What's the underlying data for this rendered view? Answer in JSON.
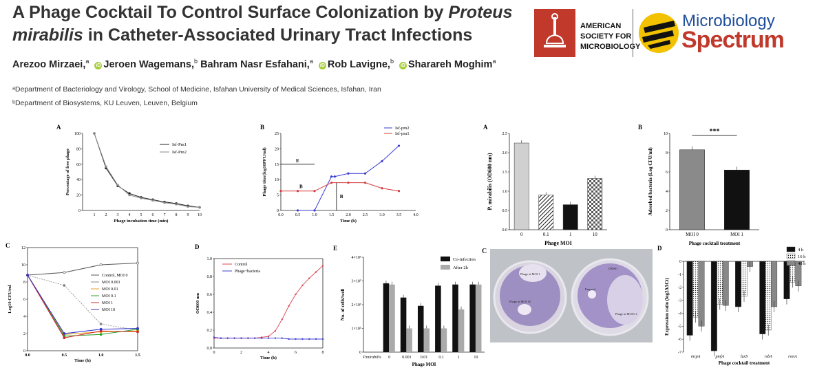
{
  "header": {
    "title": "A Phage Cocktail To Control Surface Colonization by Proteus mirabilis in Catheter-Associated Urinary Tract Infections",
    "title_parts": [
      "A Phage Cocktail To Control Surface Colonization by ",
      "Proteus",
      "mirabilis",
      " in Catheter-Associated Urinary Tract Infections"
    ],
    "authors": [
      {
        "name": "Arezoo Mirzaei,",
        "sup": "a",
        "orcid": false
      },
      {
        "name": "Jeroen Wagemans,",
        "sup": "b",
        "orcid": true
      },
      {
        "name": "Bahram Nasr Esfahani,",
        "sup": "a",
        "orcid": false
      },
      {
        "name": "Rob Lavigne,",
        "sup": "b",
        "orcid": true
      },
      {
        "name": "Sharareh Moghim",
        "sup": "a",
        "orcid": true
      }
    ],
    "affiliations": [
      "ᵃDepartment of Bacteriology and Virology, School of Medicine, Isfahan University of Medical Sciences, Isfahan, Iran",
      "ᵇDepartment of Biosystems, KU Leuven, Leuven, Belgium"
    ],
    "logos": {
      "asm_lines": [
        "AMERICAN",
        "SOCIETY FOR",
        "MICROBIOLOGY"
      ],
      "journal_line1": "Microbiology",
      "journal_line2": "Spectrum",
      "colors": {
        "asm_red": "#c0392b",
        "spectrum_blue": "#1e4e9a",
        "spectrum_red": "#c0392b",
        "spectrum_yellow": "#f2c200"
      }
    }
  },
  "chart_data": [
    {
      "id": "top-A",
      "panel": "A",
      "type": "line",
      "xlabel": "Phage incubation time (min)",
      "ylabel": "Percentage of free phage",
      "xlim": [
        0,
        10
      ],
      "ylim": [
        0,
        100
      ],
      "xticks": [
        1,
        2,
        3,
        4,
        5,
        6,
        7,
        8,
        9,
        10
      ],
      "yticks": [
        0,
        20,
        40,
        60,
        80,
        100
      ],
      "series": [
        {
          "name": "Isf-Pm1",
          "x": [
            1,
            2,
            3,
            4,
            5,
            6,
            7,
            8,
            9,
            10
          ],
          "y": [
            100,
            55,
            32,
            22,
            17,
            14,
            11,
            9,
            6,
            4
          ]
        },
        {
          "name": "Isf-Pm2",
          "x": [
            1,
            2,
            3,
            4,
            5,
            6,
            7,
            8,
            9,
            10
          ],
          "y": [
            100,
            57,
            33,
            20,
            16,
            13,
            10,
            8,
            5,
            4
          ]
        }
      ],
      "legend": "top-right"
    },
    {
      "id": "top-B",
      "panel": "B",
      "type": "line",
      "xlabel": "Time (h)",
      "ylabel": "Phage titer(log10PFU/ml)",
      "xlim": [
        0,
        4
      ],
      "ylim": [
        0,
        25
      ],
      "xticks": [
        "0.0",
        "0.5",
        "1.0",
        "1.5",
        "2.0",
        "2.5",
        "3.0",
        "3.5",
        "4.0"
      ],
      "yticks": [
        0,
        5,
        10,
        15,
        20,
        25
      ],
      "series": [
        {
          "name": "Isf-pm2",
          "color": "#3a3ad6",
          "x": [
            0.5,
            1.0,
            1.5,
            1.6,
            2.0,
            2.5,
            3.0,
            3.5
          ],
          "y": [
            0,
            0,
            11,
            11,
            12,
            12,
            16,
            21
          ]
        },
        {
          "name": "Isf-pm1",
          "color": "#d63a3a",
          "x": [
            0,
            0.5,
            1.0,
            1.5,
            2.0,
            2.5,
            3.0,
            3.5
          ],
          "y": [
            6.3,
            6.3,
            6.3,
            9,
            9,
            9,
            7.2,
            6.3
          ]
        }
      ],
      "annotations": [
        "E",
        "B",
        "B"
      ],
      "legend": "top-right"
    },
    {
      "id": "top-C",
      "panel": "A",
      "type": "bar",
      "title": "",
      "xlabel": "Phage MOI",
      "ylabel": "P. mirabilis (OD600 nm)",
      "categories": [
        "0",
        "0.1",
        "1",
        "10"
      ],
      "values": [
        2.25,
        0.9,
        0.65,
        1.33
      ],
      "ylim": [
        0,
        2.5
      ],
      "yticks": [
        "0.0",
        "0.5",
        "1.0",
        "1.5",
        "2.0",
        "2.5"
      ]
    },
    {
      "id": "top-D",
      "panel": "B",
      "type": "bar",
      "xlabel": "Phage cocktail treatment",
      "ylabel": "Adsorbed bacteria (Log CFU/ml)",
      "categories": [
        "MOI 0",
        "MOI 1"
      ],
      "values": [
        8.3,
        6.2
      ],
      "ylim": [
        0,
        10
      ],
      "yticks": [
        0,
        2,
        4,
        6,
        8,
        10
      ],
      "annotation": "***"
    },
    {
      "id": "bot-C",
      "panel": "C",
      "type": "line",
      "xlabel": "Time (h)",
      "ylabel": "Log10 CFU/ml",
      "xlim": [
        0,
        1.5
      ],
      "ylim": [
        0,
        12
      ],
      "xticks": [
        "0.0",
        "0.5",
        "1.0",
        "1.5"
      ],
      "yticks": [
        0,
        2,
        4,
        6,
        8,
        10,
        12
      ],
      "series": [
        {
          "name": "Control, MOI 0",
          "color": "#555555",
          "x": [
            0,
            0.5,
            1.0,
            1.5
          ],
          "y": [
            8.8,
            9.1,
            10.0,
            10.2
          ]
        },
        {
          "name": "MOI 0.001",
          "color": "#888888",
          "x": [
            0,
            0.5,
            1.0,
            1.5
          ],
          "y": [
            8.8,
            7.6,
            3.1,
            2.4
          ]
        },
        {
          "name": "MOI 0.01",
          "color": "#e8a020",
          "x": [
            0,
            0.5,
            1.0,
            1.5
          ],
          "y": [
            8.8,
            1.9,
            2.2,
            2.3
          ]
        },
        {
          "name": "MOI 0.1",
          "color": "#2ca02c",
          "x": [
            0,
            0.5,
            1.0,
            1.5
          ],
          "y": [
            8.8,
            1.7,
            1.9,
            2.5
          ]
        },
        {
          "name": "MOI 1",
          "color": "#d62728",
          "x": [
            0,
            0.5,
            1.0,
            1.5
          ],
          "y": [
            8.8,
            1.5,
            2.3,
            2.2
          ]
        },
        {
          "name": "MOI 10",
          "color": "#3333cc",
          "x": [
            0,
            0.5,
            1.0,
            1.5
          ],
          "y": [
            8.8,
            2.0,
            2.5,
            2.6
          ]
        }
      ],
      "legend": "right"
    },
    {
      "id": "bot-D",
      "panel": "D",
      "type": "line",
      "xlabel": "Time (h)",
      "ylabel": "OD600 nm",
      "xlim": [
        0,
        8
      ],
      "ylim": [
        0,
        1.0
      ],
      "xticks": [
        0,
        2,
        4,
        6,
        8
      ],
      "yticks": [
        "0.0",
        "0.2",
        "0.4",
        "0.6",
        "0.8",
        "1.0"
      ],
      "series": [
        {
          "name": "Control",
          "color": "#e04050",
          "x": [
            0,
            0.5,
            1,
            1.5,
            2,
            2.5,
            3,
            3.5,
            4,
            4.5,
            5,
            5.5,
            6,
            6.5,
            7,
            7.5,
            8
          ],
          "y": [
            0.11,
            0.11,
            0.11,
            0.11,
            0.11,
            0.11,
            0.11,
            0.12,
            0.13,
            0.19,
            0.32,
            0.47,
            0.6,
            0.7,
            0.78,
            0.85,
            0.92
          ]
        },
        {
          "name": "Phage+bacteria",
          "color": "#4040d0",
          "x": [
            0,
            0.5,
            1,
            1.5,
            2,
            2.5,
            3,
            3.5,
            4,
            4.5,
            5,
            5.5,
            6,
            6.5,
            7,
            7.5,
            8
          ],
          "y": [
            0.12,
            0.11,
            0.11,
            0.11,
            0.11,
            0.11,
            0.11,
            0.11,
            0.11,
            0.11,
            0.11,
            0.1,
            0.1,
            0.1,
            0.1,
            0.1,
            0.1
          ]
        }
      ],
      "legend": "top-left"
    },
    {
      "id": "bot-E",
      "panel": "E",
      "type": "bar",
      "xlabel": "Phage MOI",
      "ylabel": "No. of cells/well",
      "categories": [
        "P.mirabilis",
        "0",
        "0.001",
        "0.01",
        "0.1",
        "1",
        "10"
      ],
      "series": [
        {
          "name": "Co-infection",
          "color": "#111111",
          "values": [
            0,
            290000,
            230000,
            195000,
            280000,
            285000,
            285000
          ]
        },
        {
          "name": "After 2h",
          "color": "#aaaaaa",
          "values": [
            0,
            285000,
            100000,
            100000,
            100000,
            180000,
            285000
          ]
        }
      ],
      "ylim": [
        0,
        400000
      ],
      "yticks": [
        "0",
        "1×10⁵",
        "2×10⁵",
        "3×10⁵",
        "4×10⁵"
      ],
      "legend": "top-right"
    },
    {
      "id": "bot-G",
      "panel": "D",
      "type": "bar",
      "xlabel": "Phage cocktail treatment",
      "ylabel": "Expression ratio (log2ΔΔCt)",
      "categories": [
        "mrpA",
        "pmfA",
        "luxS",
        "rsbA",
        "rsmA"
      ],
      "series": [
        {
          "name": "4 h",
          "color": "#111111",
          "values": [
            -5.7,
            -6.9,
            -3.5,
            -5.6,
            -2.9
          ]
        },
        {
          "name": "16 h",
          "color": "#ffffff",
          "values": [
            -4.3,
            -3.3,
            -2.7,
            -5.3,
            -1.6
          ]
        },
        {
          "name": "48 h",
          "color": "#888888",
          "values": [
            -5.0,
            -3.4,
            -0.4,
            -3.5,
            -1.9
          ]
        }
      ],
      "ylim": [
        -7,
        0
      ],
      "yticks": [
        "-7",
        "-6",
        "-5",
        "-4",
        "-3",
        "-2",
        "-1",
        "0"
      ],
      "legend": "top-right"
    }
  ],
  "photo": {
    "panel": "C",
    "plate_labels": [
      "Phage at MOI 1",
      "Phage at MOI 10",
      "DMSO",
      "Empeed",
      "Phage at MOI 0.1"
    ]
  }
}
